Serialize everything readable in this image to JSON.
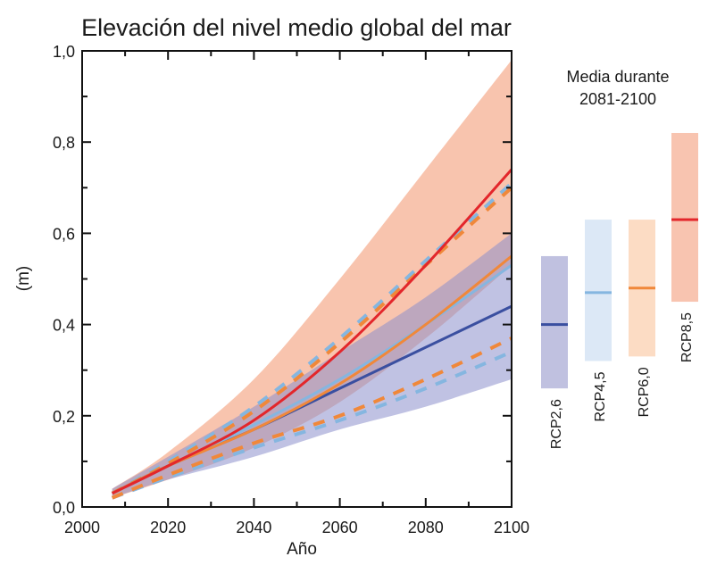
{
  "chart_data": {
    "type": "line",
    "title": "Elevación del nivel medio global del mar",
    "xlabel": "Año",
    "ylabel": "(m)",
    "xlim": [
      2000,
      2100
    ],
    "ylim": [
      0,
      1
    ],
    "xticks": [
      "2000",
      "2020",
      "2040",
      "2060",
      "2080",
      "2100"
    ],
    "yticks": [
      "0,0",
      "0,2",
      "0,4",
      "0,6",
      "0,8",
      "1,0"
    ],
    "x": [
      2007,
      2020,
      2040,
      2060,
      2080,
      2100
    ],
    "bands": [
      {
        "name": "RCP8,5 likely range",
        "color": "#f4a582",
        "upper": [
          0.04,
          0.12,
          0.28,
          0.5,
          0.74,
          0.98
        ],
        "lower": [
          0.02,
          0.06,
          0.13,
          0.23,
          0.37,
          0.53
        ]
      },
      {
        "name": "RCP2,6 likely range",
        "color": "#8c8fcc",
        "upper": [
          0.04,
          0.11,
          0.22,
          0.34,
          0.46,
          0.6
        ],
        "lower": [
          0.02,
          0.06,
          0.11,
          0.17,
          0.22,
          0.28
        ]
      }
    ],
    "series": [
      {
        "name": "RCP4,5 upper (dashed)",
        "color": "#85b6e0",
        "dashed": true,
        "values": [
          0.03,
          0.1,
          0.22,
          0.37,
          0.54,
          0.71
        ]
      },
      {
        "name": "RCP6,0 upper (dashed)",
        "color": "#f0883a",
        "dashed": true,
        "values": [
          0.03,
          0.095,
          0.21,
          0.36,
          0.53,
          0.7
        ]
      },
      {
        "name": "RCP4,5 lower (dashed)",
        "color": "#85b6e0",
        "dashed": true,
        "values": [
          0.02,
          0.065,
          0.13,
          0.19,
          0.26,
          0.34
        ]
      },
      {
        "name": "RCP6,0 lower (dashed)",
        "color": "#f0883a",
        "dashed": true,
        "values": [
          0.02,
          0.07,
          0.14,
          0.2,
          0.28,
          0.37
        ]
      },
      {
        "name": "RCP2,6",
        "color": "#3a4fa0",
        "dashed": false,
        "values": [
          0.03,
          0.09,
          0.17,
          0.26,
          0.35,
          0.44
        ]
      },
      {
        "name": "RCP4,5",
        "color": "#85b6e0",
        "dashed": false,
        "values": [
          0.03,
          0.09,
          0.18,
          0.28,
          0.4,
          0.53
        ]
      },
      {
        "name": "RCP6,0",
        "color": "#f0883a",
        "dashed": false,
        "values": [
          0.03,
          0.09,
          0.17,
          0.27,
          0.4,
          0.55
        ]
      },
      {
        "name": "RCP8,5",
        "color": "#e3262b",
        "dashed": false,
        "values": [
          0.03,
          0.09,
          0.19,
          0.34,
          0.53,
          0.74
        ]
      }
    ],
    "side_panel": {
      "title_line1": "Media durante",
      "title_line2": "2081-2100",
      "bars": [
        {
          "label": "RCP2,6",
          "fill": "#c0c1e0",
          "line": "#3a4fa0",
          "low": 0.26,
          "high": 0.55,
          "median": 0.4
        },
        {
          "label": "RCP4,5",
          "fill": "#dce8f6",
          "line": "#85b6e0",
          "low": 0.32,
          "high": 0.63,
          "median": 0.47
        },
        {
          "label": "RCP6,0",
          "fill": "#fcdcc4",
          "line": "#f0883a",
          "low": 0.33,
          "high": 0.63,
          "median": 0.48
        },
        {
          "label": "RCP8,5",
          "fill": "#f8c4b0",
          "line": "#e3262b",
          "low": 0.45,
          "high": 0.82,
          "median": 0.63
        }
      ]
    }
  }
}
